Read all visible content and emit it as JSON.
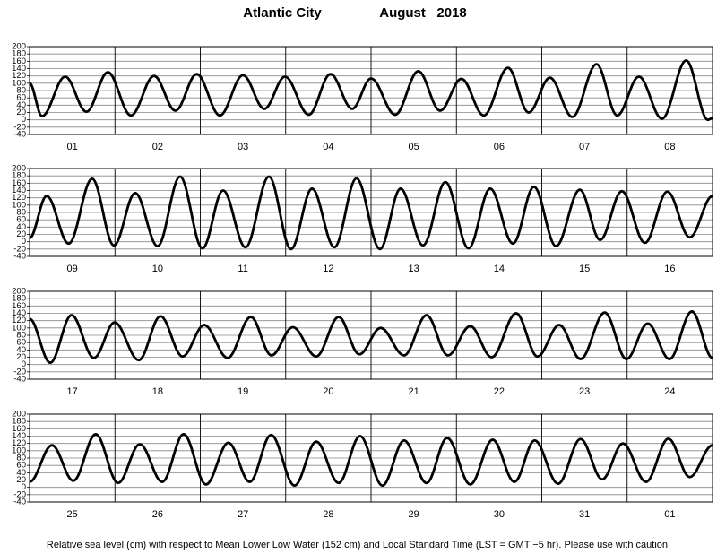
{
  "header": {
    "location": "Atlantic City",
    "date": "August   2018"
  },
  "footnote": "Relative sea level (cm) with respect to Mean Lower Low Water (152 cm) and Local Standard Time (LST = GMT −5 hr). Please use with caution.",
  "chart_data": [
    {
      "type": "line",
      "color": "#000000",
      "xlim": [
        0,
        192
      ],
      "ylim": [
        -40,
        200
      ],
      "yticks": [
        -40,
        -20,
        0,
        20,
        40,
        60,
        80,
        100,
        120,
        140,
        160,
        180,
        200
      ],
      "day_lines": [
        24,
        48,
        72,
        96,
        120,
        144,
        168
      ],
      "xticks": [
        {
          "value": 12,
          "label": "01"
        },
        {
          "value": 36,
          "label": "02"
        },
        {
          "value": 60,
          "label": "03"
        },
        {
          "value": 84,
          "label": "04"
        },
        {
          "value": 108,
          "label": "05"
        },
        {
          "value": 132,
          "label": "06"
        },
        {
          "value": 156,
          "label": "07"
        },
        {
          "value": 180,
          "label": "08"
        }
      ],
      "x": [
        0,
        3.5,
        10,
        16,
        22,
        28.5,
        35,
        41,
        47,
        53.5,
        60,
        66,
        71.8,
        78.5,
        84.6,
        90.7,
        96,
        102.8,
        109.3,
        115.4,
        121.4,
        127.7,
        134.5,
        140.3,
        146.3,
        152.6,
        159.4,
        165.2,
        171.3,
        177.8,
        184.6,
        190.7,
        192
      ],
      "values": [
        100,
        10,
        118,
        22,
        130,
        12,
        120,
        25,
        125,
        12,
        122,
        30,
        118,
        14,
        125,
        30,
        113,
        14,
        133,
        25,
        112,
        12,
        142,
        20,
        115,
        8,
        152,
        12,
        118,
        3,
        162,
        0,
        5
      ]
    },
    {
      "type": "line",
      "color": "#000000",
      "xlim": [
        0,
        192
      ],
      "ylim": [
        -40,
        200
      ],
      "yticks": [
        -40,
        -20,
        0,
        20,
        40,
        60,
        80,
        100,
        120,
        140,
        160,
        180,
        200
      ],
      "day_lines": [
        24,
        48,
        72,
        96,
        120,
        144,
        168
      ],
      "xticks": [
        {
          "value": 12,
          "label": "09"
        },
        {
          "value": 36,
          "label": "10"
        },
        {
          "value": 60,
          "label": "11"
        },
        {
          "value": 84,
          "label": "12"
        },
        {
          "value": 108,
          "label": "13"
        },
        {
          "value": 132,
          "label": "14"
        },
        {
          "value": 156,
          "label": "15"
        },
        {
          "value": 180,
          "label": "16"
        }
      ],
      "x": [
        0,
        4.8,
        11,
        17.6,
        23.7,
        29.7,
        36,
        42.3,
        48.6,
        54.4,
        60.7,
        67.3,
        73.5,
        79.4,
        85.7,
        91.9,
        98.5,
        104.3,
        110.6,
        116.9,
        123.4,
        129.5,
        135.9,
        141.8,
        148,
        154.7,
        160.4,
        166.5,
        173,
        179.3,
        185.6,
        192
      ],
      "values": [
        10,
        125,
        -5,
        172,
        -10,
        133,
        -12,
        178,
        -18,
        140,
        -15,
        178,
        -20,
        145,
        -15,
        173,
        -20,
        145,
        -10,
        163,
        -18,
        145,
        -5,
        150,
        -12,
        142,
        5,
        138,
        -3,
        137,
        12,
        125
      ]
    },
    {
      "type": "line",
      "color": "#000000",
      "xlim": [
        0,
        192
      ],
      "ylim": [
        -40,
        200
      ],
      "yticks": [
        -40,
        -20,
        0,
        20,
        40,
        60,
        80,
        100,
        120,
        140,
        160,
        180,
        200
      ],
      "day_lines": [
        24,
        48,
        72,
        96,
        120,
        144,
        168
      ],
      "xticks": [
        {
          "value": 12,
          "label": "17"
        },
        {
          "value": 36,
          "label": "18"
        },
        {
          "value": 60,
          "label": "19"
        },
        {
          "value": 84,
          "label": "20"
        },
        {
          "value": 108,
          "label": "21"
        },
        {
          "value": 132,
          "label": "22"
        },
        {
          "value": 156,
          "label": "23"
        },
        {
          "value": 180,
          "label": "24"
        }
      ],
      "x": [
        0,
        5.8,
        11.8,
        18.1,
        23.9,
        30.7,
        36.8,
        43,
        49.1,
        55.7,
        62.2,
        68,
        74,
        80.6,
        86.9,
        92.7,
        98.7,
        105.3,
        111.6,
        117.6,
        123.9,
        129.9,
        136.8,
        142.8,
        148.9,
        154.9,
        161.7,
        167.8,
        173.8,
        179.9,
        186.2,
        192
      ],
      "values": [
        125,
        5,
        135,
        18,
        115,
        12,
        132,
        22,
        108,
        18,
        130,
        25,
        102,
        22,
        130,
        28,
        100,
        25,
        135,
        25,
        105,
        20,
        140,
        22,
        108,
        15,
        142,
        15,
        112,
        15,
        145,
        18
      ]
    },
    {
      "type": "line",
      "color": "#000000",
      "xlim": [
        0,
        192
      ],
      "ylim": [
        -40,
        200
      ],
      "yticks": [
        -40,
        -20,
        0,
        20,
        40,
        60,
        80,
        100,
        120,
        140,
        160,
        180,
        200
      ],
      "day_lines": [
        24,
        48,
        72,
        96,
        120,
        144,
        168
      ],
      "xticks": [
        {
          "value": 12,
          "label": "25"
        },
        {
          "value": 36,
          "label": "26"
        },
        {
          "value": 60,
          "label": "27"
        },
        {
          "value": 84,
          "label": "28"
        },
        {
          "value": 108,
          "label": "29"
        },
        {
          "value": 132,
          "label": "30"
        },
        {
          "value": 156,
          "label": "31"
        },
        {
          "value": 180,
          "label": "01"
        }
      ],
      "x": [
        0,
        6.3,
        12.3,
        18.6,
        24.9,
        31,
        37.3,
        43.3,
        49.6,
        55.9,
        61.9,
        67.9,
        74.5,
        80.6,
        86.9,
        92.9,
        99.2,
        105.3,
        111.6,
        117.4,
        123.9,
        130.2,
        136.3,
        142,
        148.6,
        154.9,
        161,
        166.8,
        173.3,
        179.6,
        185.6,
        192
      ],
      "values": [
        15,
        115,
        18,
        145,
        12,
        118,
        15,
        145,
        8,
        122,
        15,
        143,
        5,
        125,
        12,
        140,
        5,
        128,
        12,
        135,
        8,
        130,
        15,
        128,
        10,
        132,
        22,
        120,
        15,
        133,
        28,
        115
      ]
    }
  ]
}
